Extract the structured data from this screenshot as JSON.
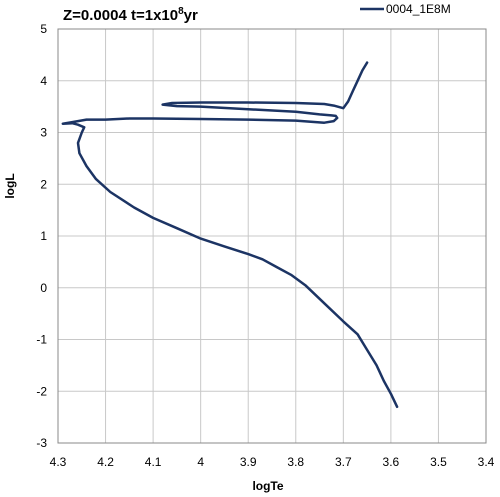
{
  "chart_data": {
    "type": "line",
    "title": "Z=0.0004 t=1x10",
    "title_superscript": "8",
    "title_suffix": "yr",
    "xlabel": "logTe",
    "ylabel": "logL",
    "xlim": [
      4.3,
      3.4
    ],
    "ylim": [
      -3,
      5
    ],
    "x_reversed": true,
    "xticks": [
      4.3,
      4.2,
      4.1,
      4.0,
      3.9,
      3.8,
      3.7,
      3.6,
      3.5,
      3.4
    ],
    "xtick_labels": [
      "4.3",
      "4.2",
      "4.1",
      "4",
      "3.9",
      "3.8",
      "3.7",
      "3.6",
      "3.5",
      "3.4"
    ],
    "yticks": [
      -3,
      -2,
      -1,
      0,
      1,
      2,
      3,
      4,
      5
    ],
    "ytick_labels": [
      "-3",
      "-2",
      "-1",
      "0",
      "1",
      "2",
      "3",
      "4",
      "5"
    ],
    "grid": true,
    "legend_position": "top-right",
    "series": [
      {
        "name": "0004_1E8M",
        "color": "#1c3464",
        "x": [
          3.587,
          3.6,
          3.615,
          3.63,
          3.65,
          3.67,
          3.7,
          3.74,
          3.78,
          3.81,
          3.84,
          3.87,
          3.9,
          3.95,
          4.0,
          4.05,
          4.1,
          4.14,
          4.19,
          4.22,
          4.24,
          4.255,
          4.258,
          4.25,
          4.245,
          4.258,
          4.27,
          4.29,
          4.27,
          4.24,
          4.2,
          4.15,
          4.1,
          4.0,
          3.9,
          3.8,
          3.74,
          3.72,
          3.713,
          3.716,
          3.725,
          3.75,
          3.8,
          3.9,
          4.0,
          4.05,
          4.08,
          4.06,
          4.0,
          3.9,
          3.8,
          3.74,
          3.72,
          3.7,
          3.69,
          3.68,
          3.67,
          3.66,
          3.65
        ],
        "y": [
          -2.3,
          -2.05,
          -1.8,
          -1.5,
          -1.2,
          -0.9,
          -0.65,
          -0.3,
          0.05,
          0.25,
          0.4,
          0.55,
          0.65,
          0.8,
          0.95,
          1.15,
          1.35,
          1.55,
          1.85,
          2.1,
          2.35,
          2.6,
          2.8,
          3.0,
          3.1,
          3.15,
          3.18,
          3.17,
          3.2,
          3.25,
          3.25,
          3.27,
          3.27,
          3.26,
          3.25,
          3.23,
          3.19,
          3.22,
          3.28,
          3.32,
          3.33,
          3.35,
          3.4,
          3.45,
          3.5,
          3.51,
          3.54,
          3.57,
          3.58,
          3.58,
          3.57,
          3.55,
          3.52,
          3.47,
          3.6,
          3.8,
          4.0,
          4.2,
          4.35
        ]
      }
    ]
  }
}
